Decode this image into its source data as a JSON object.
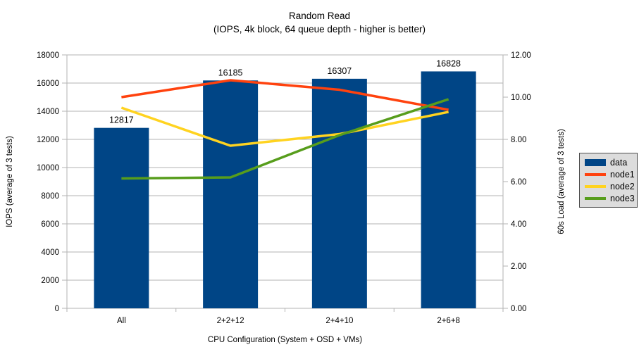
{
  "title": {
    "line1": "Random Read",
    "line2": "(IOPS, 4k block, 64 queue depth - higher is better)"
  },
  "chart_data": {
    "type": "bar",
    "subtype": "bar-line-combo",
    "title": "Random Read",
    "subtitle": "(IOPS, 4k block, 64 queue depth - higher is better)",
    "categories": [
      "All",
      "2+2+12",
      "2+4+10",
      "2+6+8"
    ],
    "series": [
      {
        "name": "data",
        "type": "bar",
        "axis": "left",
        "color": "#004586",
        "values": [
          12817,
          16185,
          16307,
          16828
        ],
        "labels": [
          "12817",
          "16185",
          "16307",
          "16828"
        ]
      },
      {
        "name": "node1",
        "type": "line",
        "axis": "right",
        "color": "#FF420E",
        "values": [
          10.0,
          10.8,
          10.35,
          9.4
        ]
      },
      {
        "name": "node2",
        "type": "line",
        "axis": "right",
        "color": "#FFD320",
        "values": [
          9.5,
          7.7,
          8.25,
          9.3
        ]
      },
      {
        "name": "node3",
        "type": "line",
        "axis": "right",
        "color": "#579D1C",
        "values": [
          6.15,
          6.2,
          8.2,
          9.9
        ]
      }
    ],
    "left_axis": {
      "title": "IOPS (average of 3 tests)",
      "min": 0,
      "max": 18000,
      "step": 2000,
      "tick_labels": [
        "0",
        "2000",
        "4000",
        "6000",
        "8000",
        "10000",
        "12000",
        "14000",
        "16000",
        "18000"
      ]
    },
    "right_axis": {
      "title": "60s Load (average of 3 tests)",
      "min": 0,
      "max": 12,
      "step": 2,
      "tick_labels": [
        "0.00",
        "2.00",
        "4.00",
        "6.00",
        "8.00",
        "10.00",
        "12.00"
      ]
    },
    "x_axis": {
      "title": "CPU Configuration (System + OSD + VMs)"
    },
    "grid": "horizontal-only",
    "grid_color": "#b3b3b3",
    "legend": {
      "position": "right",
      "items": [
        {
          "label": "data",
          "type": "bar",
          "color": "#004586"
        },
        {
          "label": "node1",
          "type": "line",
          "color": "#FF420E"
        },
        {
          "label": "node2",
          "type": "line",
          "color": "#FFD320"
        },
        {
          "label": "node3",
          "type": "line",
          "color": "#579D1C"
        }
      ]
    }
  }
}
